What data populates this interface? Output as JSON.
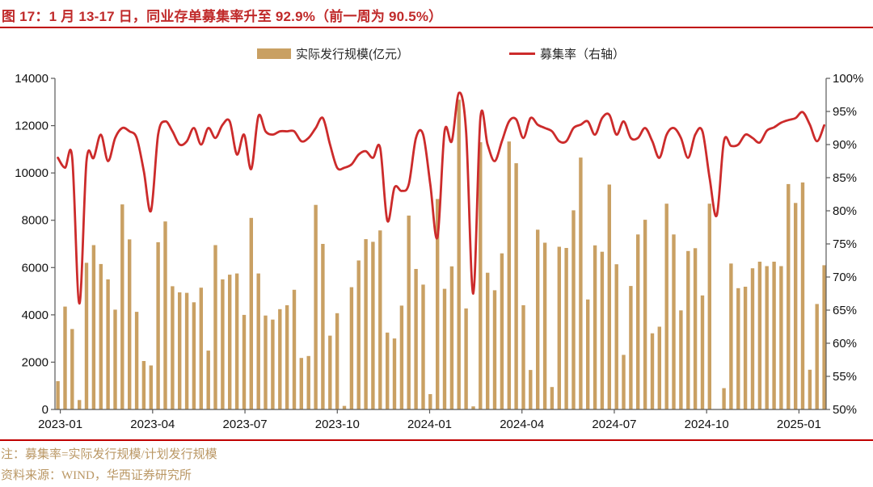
{
  "title": "图 17：1 月 13-17 日，同业存单募集率升至 92.9%（前一周为 90.5%）",
  "legend": [
    {
      "label": "实际发行规模(亿元）",
      "type": "bar",
      "color": "#C9A063"
    },
    {
      "label": "募集率（右轴）",
      "type": "line",
      "color": "#CC2B2B"
    }
  ],
  "notes": [
    "注：募集率=实际发行规模/计划发行规模",
    "资料来源：WIND，华西证券研究所"
  ],
  "colors": {
    "title_red": "#C02A2A",
    "divider_red": "#C00000",
    "bar": "#C9A063",
    "line": "#CC2B2B",
    "note_gold": "#BA9764",
    "axis": "#595959",
    "tick_text": "#111111"
  },
  "chart_data": {
    "type": "bar+line dual-axis, weekly",
    "x_start": "2022-12-30",
    "x_step_days": 7,
    "x_end": "2025-01-17",
    "x_tick_labels": [
      "2023-01",
      "2023-04",
      "2023-07",
      "2023-10",
      "2024-01",
      "2024-04",
      "2024-07",
      "2024-10",
      "2025-01"
    ],
    "left_axis": {
      "min": 0,
      "max": 14000,
      "step": 2000,
      "tick_labels": [
        "0",
        "2000",
        "4000",
        "6000",
        "8000",
        "10000",
        "12000",
        "14000"
      ]
    },
    "right_axis": {
      "min": 50,
      "max": 100,
      "step": 5,
      "tick_labels": [
        "50%",
        "55%",
        "60%",
        "65%",
        "70%",
        "75%",
        "80%",
        "85%",
        "90%",
        "95%",
        "100%"
      ]
    },
    "grid": "none",
    "legend_position": "top-center",
    "series": [
      {
        "name": "实际发行规模(亿元）",
        "type": "bar",
        "axis": "left",
        "color": "#C9A063",
        "values": [
          1200,
          4350,
          3400,
          400,
          6200,
          6950,
          6150,
          5500,
          4220,
          8670,
          7190,
          4130,
          2050,
          1860,
          7070,
          7950,
          5210,
          4950,
          4930,
          4530,
          5150,
          2490,
          6950,
          5500,
          5700,
          5750,
          4000,
          8100,
          5750,
          3970,
          3800,
          4240,
          4410,
          5060,
          2180,
          2260,
          8650,
          7000,
          3120,
          4070,
          150,
          5170,
          6300,
          7200,
          7090,
          7570,
          3250,
          3000,
          4390,
          8200,
          5940,
          5280,
          650,
          8900,
          5100,
          6050,
          13100,
          4270,
          130,
          11300,
          5780,
          5040,
          6600,
          11330,
          10410,
          4410,
          1670,
          7600,
          7050,
          950,
          6880,
          6830,
          8420,
          10650,
          4650,
          6940,
          6670,
          9510,
          6140,
          2310,
          5220,
          7400,
          8020,
          3220,
          3500,
          8700,
          7400,
          4190,
          6700,
          6820,
          4820,
          8700,
          0,
          900,
          6170,
          5130,
          5190,
          5970,
          6250,
          6060,
          6250,
          6060,
          9530,
          8730,
          9600,
          1680,
          4460,
          6100
        ]
      },
      {
        "name": "募集率（右轴）",
        "type": "line",
        "axis": "right",
        "unit": "percent",
        "color": "#CC2B2B",
        "values": [
          88,
          86.5,
          88,
          66,
          87.5,
          88,
          91.5,
          87.5,
          91,
          92.5,
          92,
          91,
          86,
          80,
          91.5,
          93.5,
          92,
          90,
          90.5,
          92.5,
          90,
          92.5,
          91,
          93,
          93.5,
          88.5,
          91.5,
          86.3,
          94.3,
          92,
          91.5,
          92,
          92,
          92,
          90.5,
          91,
          92.5,
          94,
          90,
          86.5,
          86.5,
          87,
          88.5,
          89,
          88,
          89.5,
          78.5,
          83.5,
          83,
          84,
          91,
          91.5,
          84,
          76,
          92,
          90.5,
          97.8,
          92,
          67.5,
          94,
          90,
          87.5,
          90.5,
          93.5,
          93.8,
          91,
          94,
          93,
          92.5,
          92,
          90.5,
          90.5,
          92.5,
          93,
          93.5,
          91.5,
          94,
          94.5,
          91.5,
          93.5,
          91,
          91,
          92.5,
          90.5,
          88,
          91.5,
          92.5,
          91,
          88,
          91.5,
          92,
          85,
          79.3,
          90.5,
          89.8,
          90,
          91.5,
          91,
          90.3,
          92.1,
          92.6,
          93.3,
          93.7,
          94,
          94.9,
          93,
          90.5,
          92.9
        ]
      }
    ],
    "callouts": {
      "latest_week": "1 月 13-17 日",
      "latest_rate_pct": 92.9,
      "previous_rate_pct": 90.5
    }
  }
}
